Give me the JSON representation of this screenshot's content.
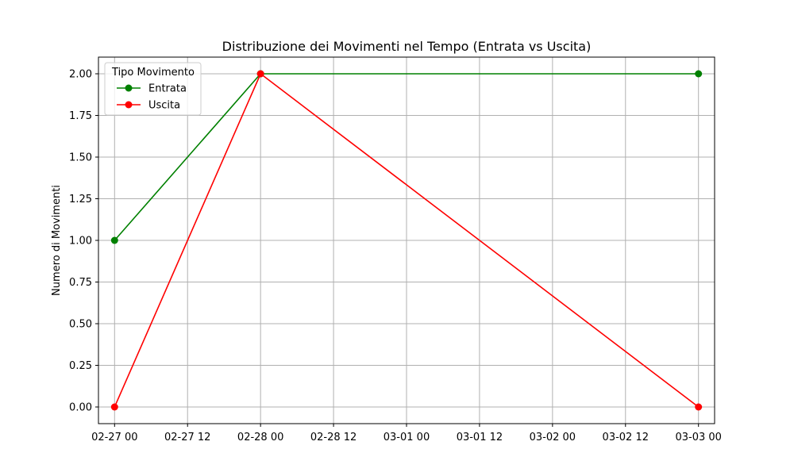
{
  "chart_data": {
    "type": "line",
    "title": "Distribuzione dei Movimenti nel Tempo (Entrata vs Uscita)",
    "xlabel": "",
    "ylabel": "Numero di Movimenti",
    "x_ticks": [
      {
        "value": "2025-02-27T00:00",
        "label": "02-27 00"
      },
      {
        "value": "2025-02-27T12:00",
        "label": "02-27 12"
      },
      {
        "value": "2025-02-28T00:00",
        "label": "02-28 00"
      },
      {
        "value": "2025-02-28T12:00",
        "label": "02-28 12"
      },
      {
        "value": "2025-03-01T00:00",
        "label": "03-01 00"
      },
      {
        "value": "2025-03-01T12:00",
        "label": "03-01 12"
      },
      {
        "value": "2025-03-02T00:00",
        "label": "03-02 00"
      },
      {
        "value": "2025-03-02T12:00",
        "label": "03-02 12"
      },
      {
        "value": "2025-03-03T00:00",
        "label": "03-03 00"
      }
    ],
    "y_ticks": [
      "0.00",
      "0.25",
      "0.50",
      "0.75",
      "1.00",
      "1.25",
      "1.50",
      "1.75",
      "2.00"
    ],
    "xlim": [
      "2025-02-26T21:21",
      "2025-03-03T02:39"
    ],
    "ylim": [
      -0.1,
      2.1
    ],
    "grid": true,
    "legend": {
      "title": "Tipo Movimento",
      "placement": "upper left"
    },
    "series": [
      {
        "name": "Entrata",
        "color": "#008000",
        "marker": "circle",
        "points": [
          {
            "x": "2025-02-27T00:00",
            "y": 1
          },
          {
            "x": "2025-02-28T00:00",
            "y": 2
          },
          {
            "x": "2025-03-03T00:00",
            "y": 2
          }
        ]
      },
      {
        "name": "Uscita",
        "color": "#ff0000",
        "marker": "circle",
        "points": [
          {
            "x": "2025-02-27T00:00",
            "y": 0
          },
          {
            "x": "2025-02-28T00:00",
            "y": 2
          },
          {
            "x": "2025-03-03T00:00",
            "y": 0
          }
        ]
      }
    ]
  }
}
